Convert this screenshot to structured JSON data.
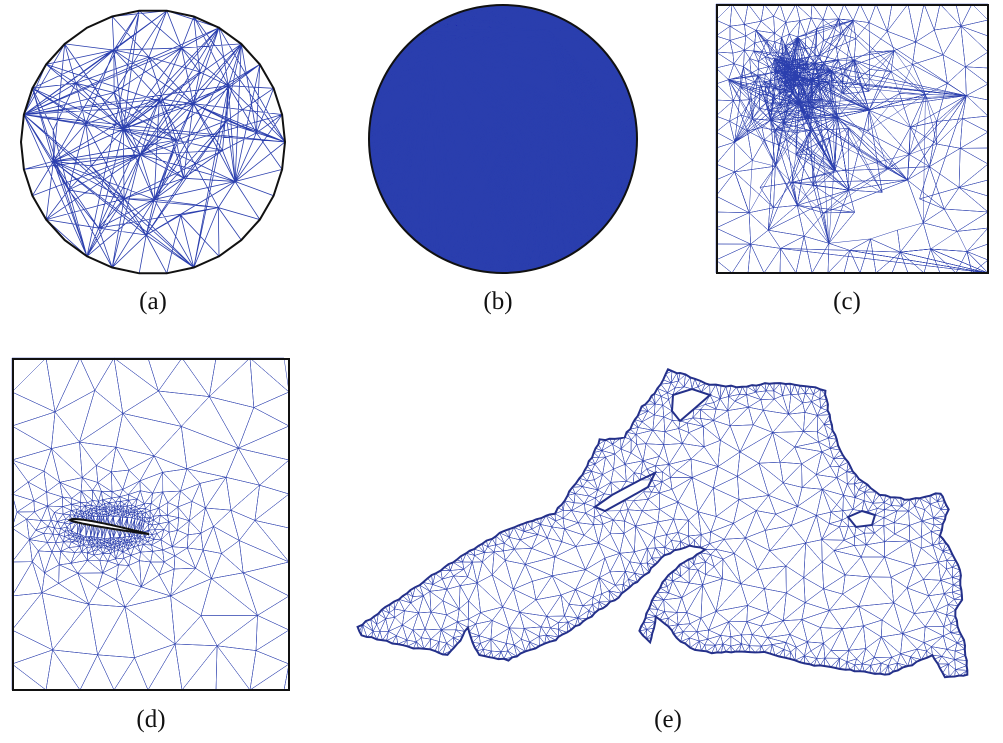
{
  "colors": {
    "mesh": "#2b3fae",
    "boundary": "#111111",
    "node": "#c0304a",
    "background": "#ffffff"
  },
  "panels": [
    {
      "id": "a",
      "caption": "(a)",
      "shape": "circle",
      "density": "coarse"
    },
    {
      "id": "b",
      "caption": "(b)",
      "shape": "circle",
      "density": "graded-to-boundary"
    },
    {
      "id": "c",
      "caption": "(c)",
      "shape": "square",
      "density": "refined-at-point"
    },
    {
      "id": "d",
      "caption": "(d)",
      "shape": "square-with-airfoil",
      "density": "refined-around-airfoil"
    },
    {
      "id": "e",
      "caption": "(e)",
      "shape": "lake-outline",
      "density": "graded-to-coastline"
    }
  ]
}
